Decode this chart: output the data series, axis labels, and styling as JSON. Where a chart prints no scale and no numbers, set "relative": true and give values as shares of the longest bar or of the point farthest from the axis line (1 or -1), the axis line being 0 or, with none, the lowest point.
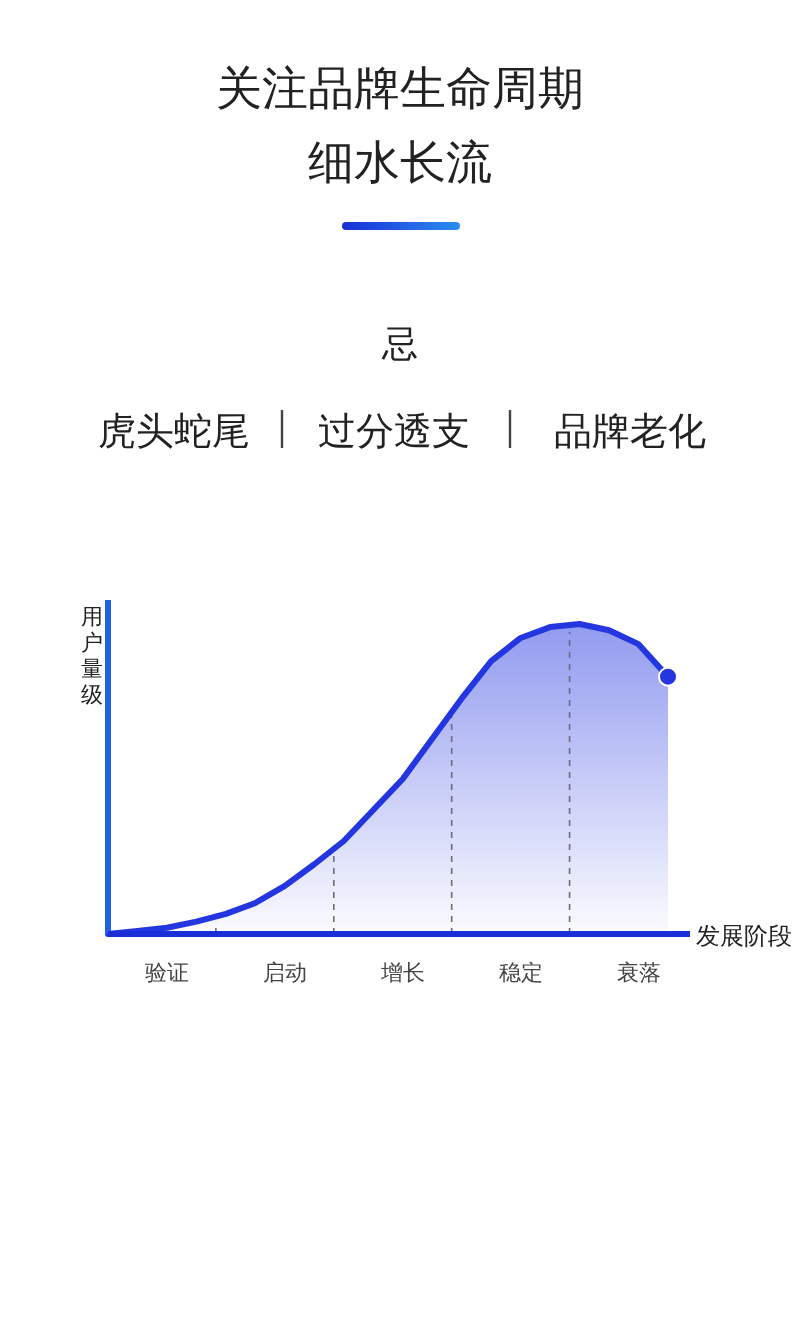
{
  "chart_data": {
    "type": "area",
    "title": "关注品牌生命周期",
    "subtitle": "细水长流",
    "annotations": [
      "忌",
      "虎头蛇尾",
      "过分透支",
      "品牌老化"
    ],
    "xlabel": "发展阶段",
    "ylabel": "用户量级",
    "categories": [
      null,
      null,
      "验证",
      null,
      null,
      null,
      "启动",
      null,
      null,
      null,
      "增长",
      null,
      null,
      null,
      "稳定",
      null,
      null,
      null,
      "衰落",
      null
    ],
    "relative": true,
    "series": [
      {
        "color": "#2436e0",
        "values": [
          0,
          0.01,
          0.02,
          0.04,
          0.065,
          0.1,
          0.155,
          0.225,
          0.3,
          0.4,
          0.5,
          0.63,
          0.76,
          0.88,
          0.955,
          0.99,
          1,
          0.98,
          0.935,
          0.83
        ]
      }
    ]
  }
}
